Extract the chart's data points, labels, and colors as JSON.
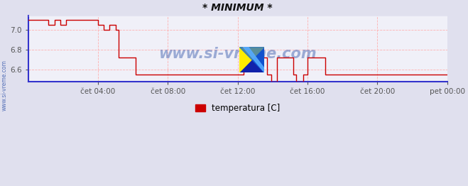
{
  "title": "* MINIMUM *",
  "background_color": "#e0e0ee",
  "plot_bg_color": "#f0f0f8",
  "grid_color": "#ffb0b0",
  "line_color": "#cc0000",
  "border_bottom_color": "#3333cc",
  "border_left_color": "#3333cc",
  "watermark_text": "www.si-vreme.com",
  "watermark_color": "#3355aa",
  "side_label": "www.si-vreme.com",
  "legend_label": "temperatura [C]",
  "ylim": [
    6.48,
    7.14
  ],
  "yticks": [
    6.6,
    6.8,
    7.0
  ],
  "xtick_labels": [
    "čet 04:00",
    "čet 08:00",
    "čet 12:00",
    "čet 16:00",
    "čet 20:00",
    "pet 00:00"
  ],
  "x_min": 0,
  "x_max": 1440,
  "xtick_positions": [
    240,
    480,
    720,
    960,
    1200,
    1440
  ],
  "steps": [
    [
      0,
      7.1
    ],
    [
      50,
      7.1
    ],
    [
      70,
      7.05
    ],
    [
      90,
      7.1
    ],
    [
      110,
      7.05
    ],
    [
      130,
      7.1
    ],
    [
      220,
      7.1
    ],
    [
      240,
      7.05
    ],
    [
      260,
      7.0
    ],
    [
      280,
      7.05
    ],
    [
      300,
      7.0
    ],
    [
      310,
      6.72
    ],
    [
      370,
      6.55
    ],
    [
      720,
      6.55
    ],
    [
      740,
      6.72
    ],
    [
      800,
      6.72
    ],
    [
      820,
      6.55
    ],
    [
      835,
      6.48
    ],
    [
      855,
      6.72
    ],
    [
      890,
      6.72
    ],
    [
      910,
      6.55
    ],
    [
      920,
      6.48
    ],
    [
      945,
      6.55
    ],
    [
      960,
      6.72
    ],
    [
      1000,
      6.72
    ],
    [
      1020,
      6.55
    ],
    [
      1440,
      6.55
    ]
  ]
}
